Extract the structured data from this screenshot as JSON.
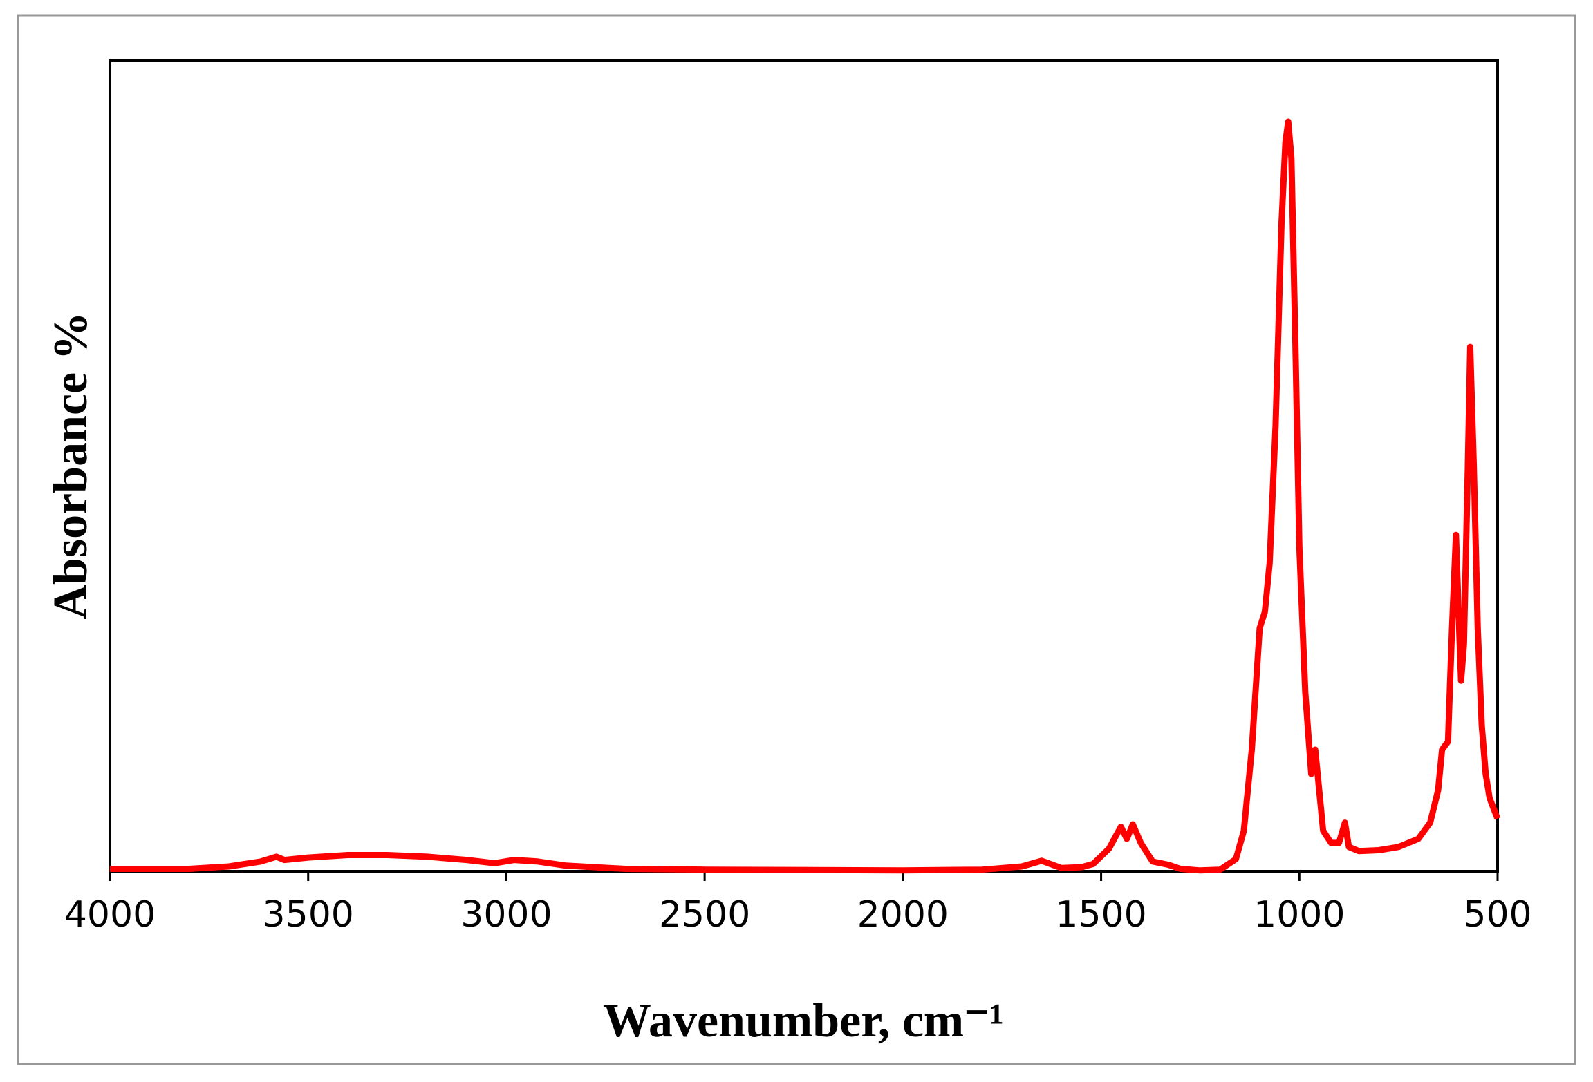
{
  "chart_data": {
    "type": "line",
    "x_label": "Wavenumber, cm⁻¹",
    "y_label": "Absorbance %",
    "xlim": [
      4000,
      500
    ],
    "xticks": [
      4000,
      3500,
      3000,
      2500,
      2000,
      1500,
      1000,
      500
    ],
    "ylim": [
      0,
      100
    ],
    "series": [
      {
        "color": "#ff0000",
        "x": [
          4000,
          3800,
          3700,
          3620,
          3580,
          3560,
          3500,
          3400,
          3300,
          3200,
          3100,
          3030,
          2980,
          2920,
          2850,
          2700,
          2500,
          2000,
          1800,
          1700,
          1650,
          1600,
          1550,
          1520,
          1480,
          1450,
          1435,
          1420,
          1400,
          1370,
          1330,
          1300,
          1250,
          1200,
          1160,
          1140,
          1120,
          1100,
          1087,
          1075,
          1060,
          1045,
          1035,
          1028,
          1020,
          1010,
          1000,
          985,
          970,
          960,
          950,
          940,
          920,
          900,
          885,
          875,
          850,
          800,
          750,
          700,
          670,
          650,
          640,
          625,
          615,
          605,
          597,
          592,
          585,
          575,
          569,
          560,
          550,
          540,
          530,
          520,
          500
        ],
        "values": [
          0.3,
          0.3,
          0.6,
          1.2,
          1.8,
          1.4,
          1.7,
          2.0,
          2.0,
          1.8,
          1.4,
          1.0,
          1.4,
          1.2,
          0.7,
          0.3,
          0.2,
          0.1,
          0.2,
          0.6,
          1.3,
          0.4,
          0.5,
          0.9,
          2.8,
          5.5,
          4.0,
          5.8,
          3.5,
          1.2,
          0.8,
          0.3,
          0.1,
          0.2,
          1.5,
          5,
          15,
          30,
          32,
          38,
          55,
          80,
          90,
          92.5,
          88,
          65,
          40,
          22,
          12,
          15,
          10,
          5,
          3.5,
          3.5,
          6,
          3,
          2.5,
          2.6,
          3,
          4,
          6,
          10,
          15,
          16,
          30,
          41.5,
          30,
          23.5,
          28,
          50,
          64.7,
          50,
          30,
          18,
          12,
          9,
          6.5
        ]
      }
    ]
  }
}
